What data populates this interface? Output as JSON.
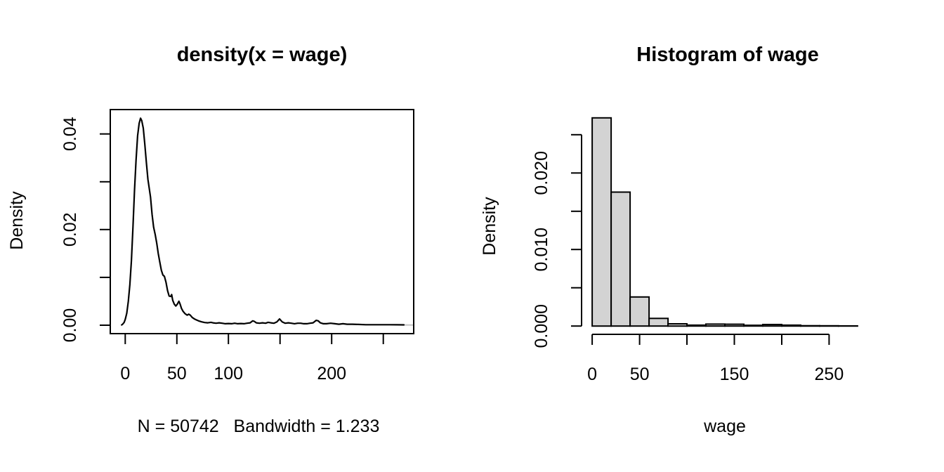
{
  "figure": {
    "background": "#ffffff",
    "text_color": "#000000"
  },
  "chart_data": [
    {
      "type": "line",
      "title": "density(x = wage)",
      "ylabel": "Density",
      "sublabel": "N = 50742   Bandwidth = 1.233",
      "xlim": [
        -14.5,
        279.5
      ],
      "ylim": [
        -0.00177,
        0.0451
      ],
      "grid": false,
      "legend": null,
      "line_color": "#000000",
      "x_ticks": [
        {
          "v": 0,
          "label": "0"
        },
        {
          "v": 50,
          "label": "50"
        },
        {
          "v": 100,
          "label": "100"
        },
        {
          "v": 150,
          "label": ""
        },
        {
          "v": 200,
          "label": "200"
        },
        {
          "v": 250,
          "label": ""
        }
      ],
      "y_ticks": [
        {
          "v": 0.0,
          "label": "0.00"
        },
        {
          "v": 0.01,
          "label": ""
        },
        {
          "v": 0.02,
          "label": "0.02"
        },
        {
          "v": 0.03,
          "label": ""
        },
        {
          "v": 0.04,
          "label": "0.04"
        }
      ],
      "points": [
        [
          -3.5,
          5e-05
        ],
        [
          -2.5,
          0.0002
        ],
        [
          -1,
          0.0006
        ],
        [
          0,
          0.0012
        ],
        [
          1.5,
          0.0025
        ],
        [
          3,
          0.005
        ],
        [
          4.5,
          0.0085
        ],
        [
          6,
          0.0135
        ],
        [
          7.5,
          0.0205
        ],
        [
          9,
          0.0282
        ],
        [
          10.5,
          0.0345
        ],
        [
          12,
          0.0396
        ],
        [
          13.5,
          0.0422
        ],
        [
          14.8,
          0.0433
        ],
        [
          16,
          0.0428
        ],
        [
          17.5,
          0.0412
        ],
        [
          19,
          0.0378
        ],
        [
          20.5,
          0.034
        ],
        [
          22,
          0.0305
        ],
        [
          23.2,
          0.0287
        ],
        [
          24.5,
          0.0268
        ],
        [
          26,
          0.0232
        ],
        [
          27.5,
          0.0205
        ],
        [
          29,
          0.019
        ],
        [
          30.5,
          0.0172
        ],
        [
          32,
          0.015
        ],
        [
          33.5,
          0.0132
        ],
        [
          35,
          0.0115
        ],
        [
          36.5,
          0.0105
        ],
        [
          38,
          0.0102
        ],
        [
          39.5,
          0.009
        ],
        [
          41,
          0.0072
        ],
        [
          42.5,
          0.0061
        ],
        [
          44,
          0.006
        ],
        [
          45,
          0.0064
        ],
        [
          46,
          0.0052
        ],
        [
          47.5,
          0.0044
        ],
        [
          49,
          0.004
        ],
        [
          50.5,
          0.0044
        ],
        [
          52,
          0.005
        ],
        [
          53,
          0.0045
        ],
        [
          54.5,
          0.0035
        ],
        [
          56,
          0.0029
        ],
        [
          58,
          0.0024
        ],
        [
          60,
          0.0021
        ],
        [
          61.5,
          0.0023
        ],
        [
          63,
          0.0021
        ],
        [
          65,
          0.0016
        ],
        [
          67,
          0.0013
        ],
        [
          69,
          0.0011
        ],
        [
          71,
          0.0009
        ],
        [
          74,
          0.0007
        ],
        [
          77,
          0.00055
        ],
        [
          80,
          0.0005
        ],
        [
          83,
          0.0006
        ],
        [
          85,
          0.0005
        ],
        [
          88,
          0.0004
        ],
        [
          91,
          0.0005
        ],
        [
          94,
          0.0004
        ],
        [
          97,
          0.0003
        ],
        [
          100,
          0.00035
        ],
        [
          103,
          0.0003
        ],
        [
          106,
          0.0004
        ],
        [
          109,
          0.0003
        ],
        [
          112,
          0.00035
        ],
        [
          115,
          0.0003
        ],
        [
          118,
          0.0004
        ],
        [
          121,
          0.0005
        ],
        [
          123.5,
          0.0009
        ],
        [
          125,
          0.0008
        ],
        [
          127,
          0.0005
        ],
        [
          130,
          0.0004
        ],
        [
          133,
          0.0005
        ],
        [
          136,
          0.0004
        ],
        [
          138.5,
          0.0006
        ],
        [
          141,
          0.0005
        ],
        [
          144,
          0.0004
        ],
        [
          147,
          0.0007
        ],
        [
          149.5,
          0.0013
        ],
        [
          152,
          0.0007
        ],
        [
          155,
          0.0004
        ],
        [
          158,
          0.0005
        ],
        [
          161,
          0.0004
        ],
        [
          164,
          0.0003
        ],
        [
          167,
          0.0004
        ],
        [
          170,
          0.0004
        ],
        [
          173,
          0.0003
        ],
        [
          176,
          0.0003
        ],
        [
          179,
          0.0004
        ],
        [
          182,
          0.0005
        ],
        [
          185,
          0.001
        ],
        [
          187,
          0.0009
        ],
        [
          189,
          0.0005
        ],
        [
          192,
          0.0003
        ],
        [
          195,
          0.0003
        ],
        [
          199,
          0.0004
        ],
        [
          203,
          0.0003
        ],
        [
          207,
          0.0002
        ],
        [
          211,
          0.0003
        ],
        [
          215,
          0.0002
        ],
        [
          220,
          0.0002
        ],
        [
          226,
          0.00015
        ],
        [
          233,
          0.0001
        ],
        [
          240,
          0.0001
        ],
        [
          248,
          0.0001
        ],
        [
          256,
          0.0001
        ],
        [
          263,
          8e-05
        ],
        [
          270,
          6e-05
        ]
      ]
    },
    {
      "type": "bar",
      "title": "Histogram of wage",
      "xlabel": "wage",
      "ylabel": "Density",
      "xlim": [
        -11.2,
        291.2
      ],
      "ylim": [
        -0.00108,
        0.02819
      ],
      "grid": false,
      "legend": null,
      "bar_fill": "#d3d3d3",
      "bar_stroke": "#000000",
      "bins": {
        "start": 0,
        "width": 20
      },
      "densities": [
        0.0272,
        0.0175,
        0.0038,
        0.001,
        0.0003,
        0.00012,
        0.00026,
        0.00024,
        0.0001,
        0.0002,
        0.00012,
        5e-05,
        4e-05,
        2e-05
      ],
      "x_ticks": [
        {
          "v": 0,
          "label": "0"
        },
        {
          "v": 50,
          "label": "50"
        },
        {
          "v": 100,
          "label": ""
        },
        {
          "v": 150,
          "label": "150"
        },
        {
          "v": 200,
          "label": ""
        },
        {
          "v": 250,
          "label": "250"
        }
      ],
      "y_ticks": [
        {
          "v": 0.0,
          "label": "0.000"
        },
        {
          "v": 0.005,
          "label": ""
        },
        {
          "v": 0.01,
          "label": "0.010"
        },
        {
          "v": 0.015,
          "label": ""
        },
        {
          "v": 0.02,
          "label": "0.020"
        },
        {
          "v": 0.025,
          "label": ""
        }
      ]
    }
  ]
}
